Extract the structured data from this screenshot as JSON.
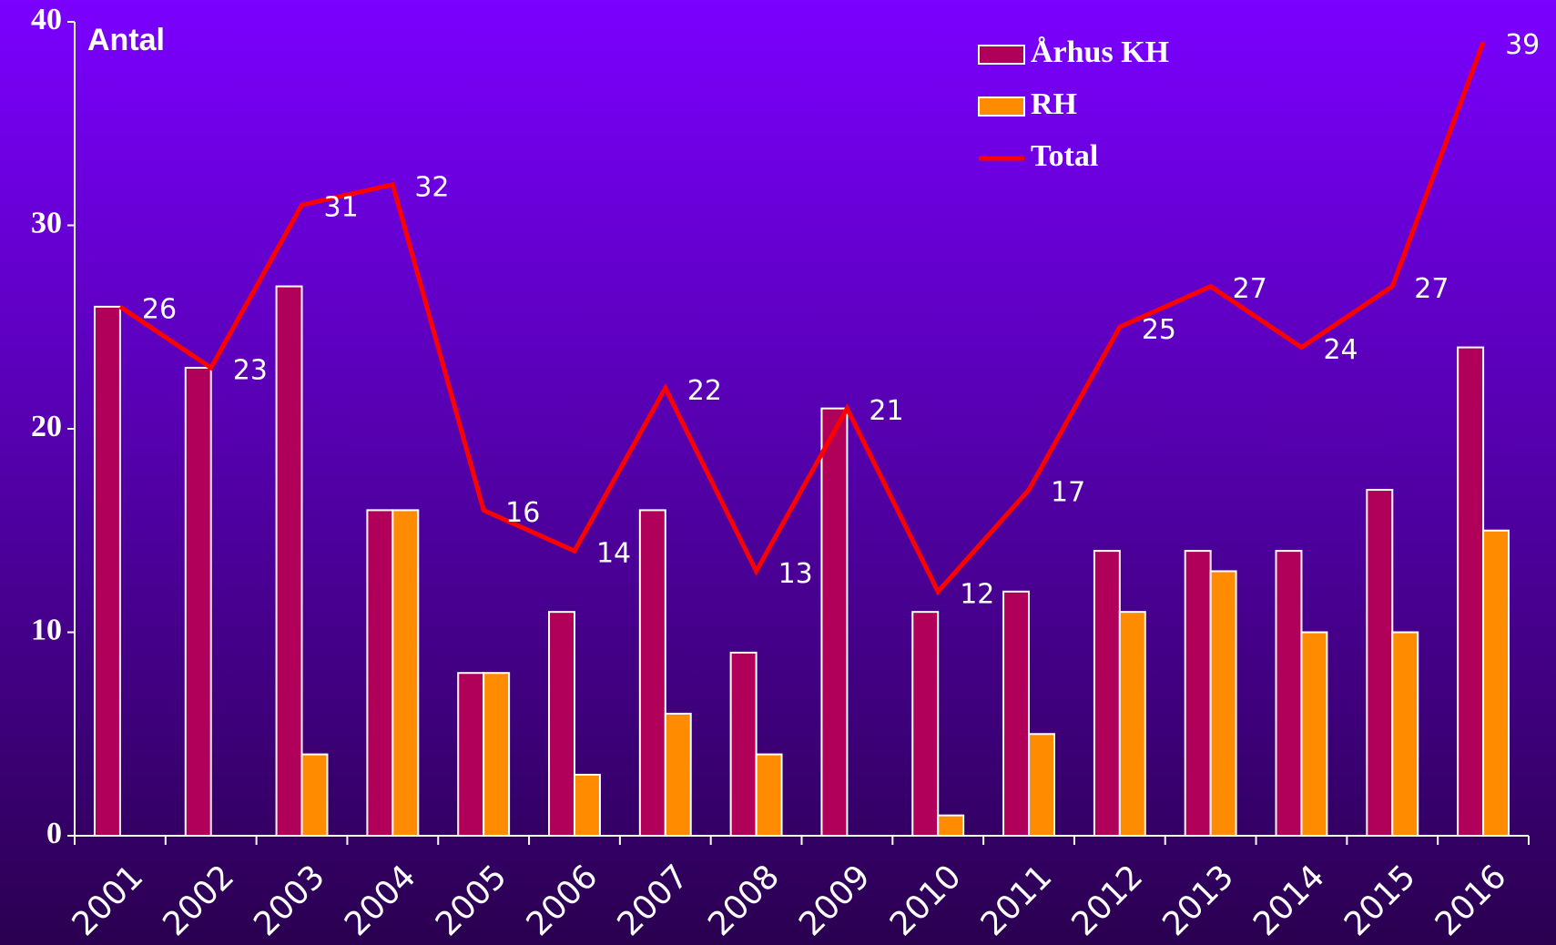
{
  "chart_data": {
    "type": "bar+line",
    "ylabel": "Antal",
    "categories": [
      "2001",
      "2002",
      "2003",
      "2004",
      "2005",
      "2006",
      "2007",
      "2008",
      "2009",
      "2010",
      "2011",
      "2012",
      "2013",
      "2014",
      "2015",
      "2016"
    ],
    "series": [
      {
        "name": "Århus KH",
        "type": "bar",
        "color": "#b0005a",
        "values": [
          26,
          23,
          27,
          16,
          8,
          11,
          16,
          9,
          21,
          11,
          12,
          14,
          14,
          14,
          17,
          24
        ]
      },
      {
        "name": "RH",
        "type": "bar",
        "color": "#ff8c00",
        "values": [
          0,
          0,
          4,
          16,
          8,
          3,
          6,
          4,
          0,
          1,
          5,
          11,
          13,
          10,
          10,
          15
        ]
      },
      {
        "name": "Total",
        "type": "line",
        "color": "#ff0000",
        "values": [
          26,
          23,
          31,
          32,
          16,
          14,
          22,
          13,
          21,
          12,
          17,
          25,
          27,
          24,
          27,
          39
        ]
      }
    ],
    "ylim": [
      0,
      40
    ],
    "yticks": [
      0,
      10,
      20,
      30,
      40
    ],
    "legend": "top-right"
  }
}
